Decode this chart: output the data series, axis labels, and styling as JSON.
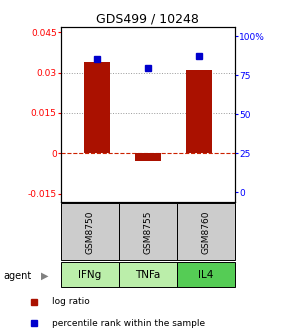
{
  "title": "GDS499 / 10248",
  "samples": [
    "GSM8750",
    "GSM8755",
    "GSM8760"
  ],
  "agents": [
    "IFNg",
    "TNFa",
    "IL4"
  ],
  "log_ratios": [
    0.034,
    -0.003,
    0.031
  ],
  "percentile_ranks": [
    85.5,
    79.5,
    87.5
  ],
  "bar_color": "#AA1100",
  "dot_color": "#0000CC",
  "ylim_left": [
    -0.018,
    0.047
  ],
  "yticks_left": [
    -0.015,
    0,
    0.015,
    0.03,
    0.045
  ],
  "ylim_right": [
    -6.0,
    106.0
  ],
  "yticks_right": [
    0,
    25,
    50,
    75,
    100
  ],
  "ytick_labels_right": [
    "0",
    "25",
    "50",
    "75",
    "100%"
  ],
  "zero_line_color": "#CC2200",
  "grid_color": "#999999",
  "agent_colors": [
    "#BBEEAA",
    "#BBEEAA",
    "#55CC55"
  ],
  "sample_box_color": "#CCCCCC",
  "bar_width": 0.5
}
